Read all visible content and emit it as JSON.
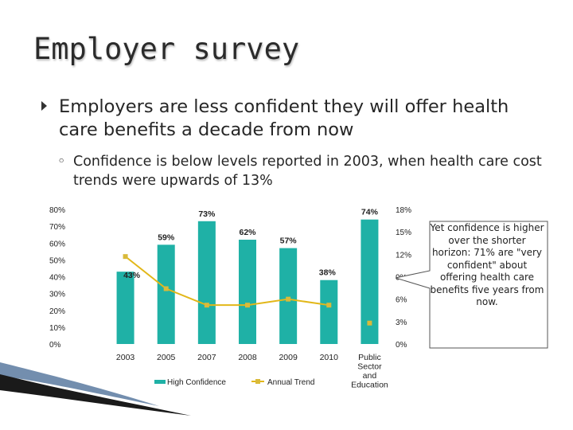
{
  "slide": {
    "title": "Employer survey",
    "bullet1": "Employers are less confident they will offer health care benefits a decade from now",
    "bullet2_marker": "◦",
    "bullet2": "Confidence is below levels reported in 2003, when health care cost trends were upwards of 13%",
    "callout": "Yet confidence is higher over the shorter horizon: 71% are \"very confident\" about offering health care benefits five years from now."
  },
  "colors": {
    "bar": "#1fb1a6",
    "line": "#e2b719",
    "marker": "#d9ba3a",
    "axis": "#888888",
    "text": "#222222"
  },
  "chart_data": {
    "type": "bar",
    "categories": [
      "2003",
      "2005",
      "2007",
      "2008",
      "2009",
      "2010",
      "Public Sector and Education"
    ],
    "category_labels": [
      [
        "2003"
      ],
      [
        "2005"
      ],
      [
        "2007"
      ],
      [
        "2008"
      ],
      [
        "2009"
      ],
      [
        "2010"
      ],
      [
        "Public",
        "Sector",
        "and",
        "Education"
      ]
    ],
    "series": [
      {
        "name": "High Confidence",
        "type": "bar",
        "axis": "left",
        "values": [
          43,
          59,
          73,
          62,
          57,
          38,
          74
        ],
        "labels": [
          "43%",
          "59%",
          "73%",
          "62%",
          "57%",
          "38%",
          "74%"
        ]
      },
      {
        "name": "Annual Trend",
        "type": "line",
        "axis": "right",
        "values": [
          11.7,
          7.4,
          5.2,
          5.2,
          6.0,
          5.2,
          2.8
        ],
        "line_points": 6
      }
    ],
    "y_left": {
      "ylim": [
        0,
        80
      ],
      "ticks": [
        "80%",
        "70%",
        "60%",
        "50%",
        "40%",
        "30%",
        "20%",
        "10%",
        "0%"
      ]
    },
    "y_right": {
      "ylim": [
        0,
        18
      ],
      "ticks": [
        "18%",
        "15%",
        "12%",
        "9%",
        "6%",
        "3%",
        "0%"
      ]
    },
    "legend_position": "bottom",
    "grid": false
  }
}
